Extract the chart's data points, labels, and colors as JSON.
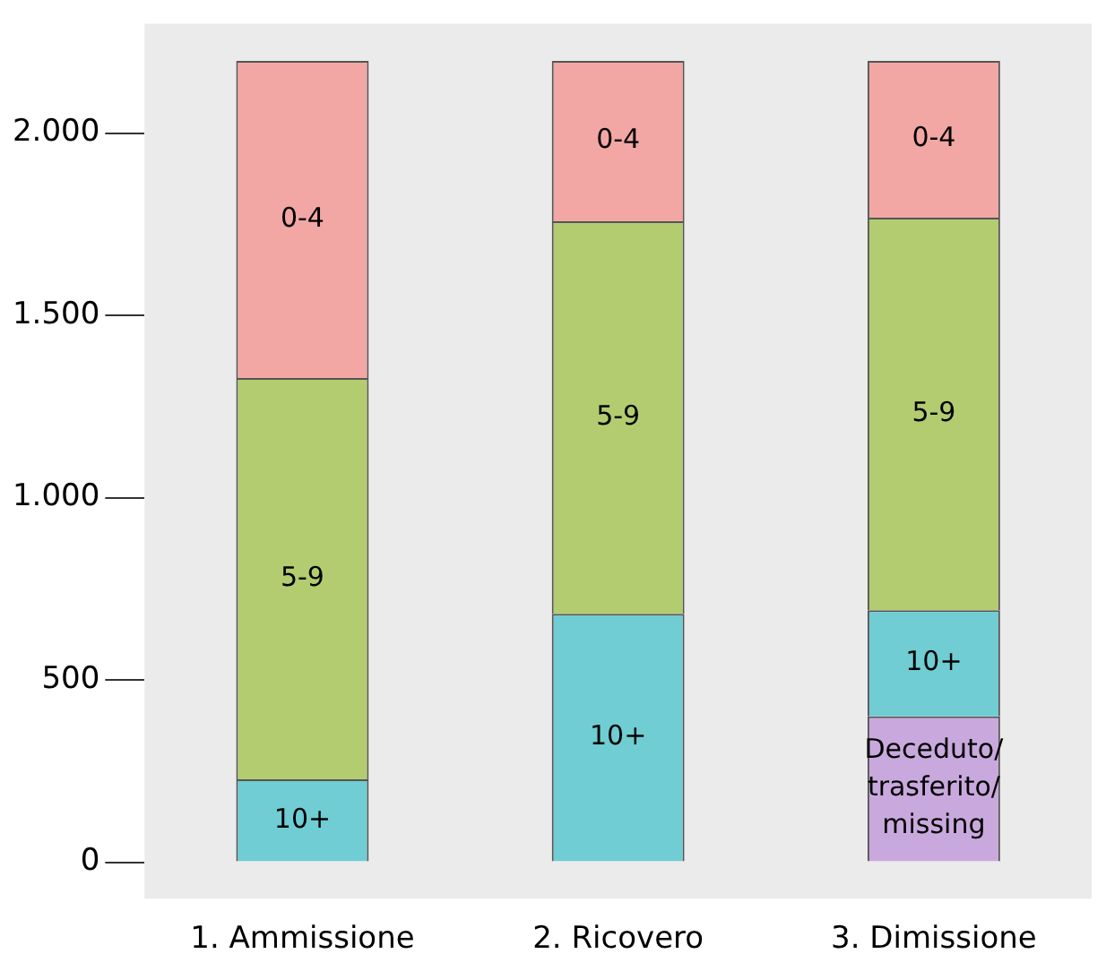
{
  "chart_data": {
    "type": "bar",
    "stacked": true,
    "categories": [
      "1. Ammissione",
      "2. Ricovero",
      "3. Dimissione"
    ],
    "series": [
      {
        "name": "Deceduto/trasferito/missing",
        "color": "#c9a9dd",
        "values": [
          null,
          null,
          400
        ]
      },
      {
        "name": "10+",
        "color": "#6fcdd3",
        "values": [
          227,
          681,
          291
        ]
      },
      {
        "name": "5-9",
        "color": "#b3cc70",
        "values": [
          1101,
          1077,
          1077
        ]
      },
      {
        "name": "0-4",
        "color": "#f2a7a5",
        "values": [
          870,
          440,
          430
        ]
      }
    ],
    "ylim": [
      -100,
      2300
    ],
    "yticks": [
      0,
      500,
      {
        "value": 1000,
        "label": "1.000"
      },
      {
        "value": 1500,
        "label": "1.500"
      },
      {
        "value": 2000,
        "label": "2.000"
      }
    ],
    "grid": false,
    "legend": false
  }
}
